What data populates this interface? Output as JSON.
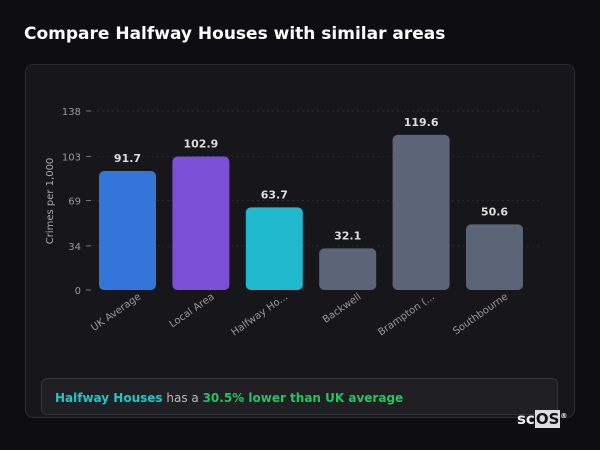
{
  "title": "Compare Halfway Houses with similar areas",
  "chart_data": {
    "type": "bar",
    "categories": [
      "UK Average",
      "Local Area",
      "Halfway Ho...",
      "Backwell",
      "Brampton (...",
      "Southbourne"
    ],
    "values": [
      91.7,
      102.9,
      63.7,
      32.1,
      119.6,
      50.6
    ],
    "value_labels": [
      "91.7",
      "102.9",
      "63.7",
      "32.1",
      "119.6",
      "50.6"
    ],
    "colors": [
      "#3375d8",
      "#7b4fd6",
      "#20b8cc",
      "#5b6577",
      "#5b6577",
      "#5b6577"
    ],
    "ylabel": "Crimes per 1,000",
    "yticks": [
      0,
      34,
      69,
      103,
      138
    ],
    "ylim": [
      0,
      138
    ],
    "grid": true
  },
  "insight": {
    "area": "Halfway Houses",
    "middle": " has a ",
    "comparison": "30.5% lower than UK average"
  },
  "logo": {
    "a": "sc",
    "b": "OS",
    "mark": "®"
  }
}
